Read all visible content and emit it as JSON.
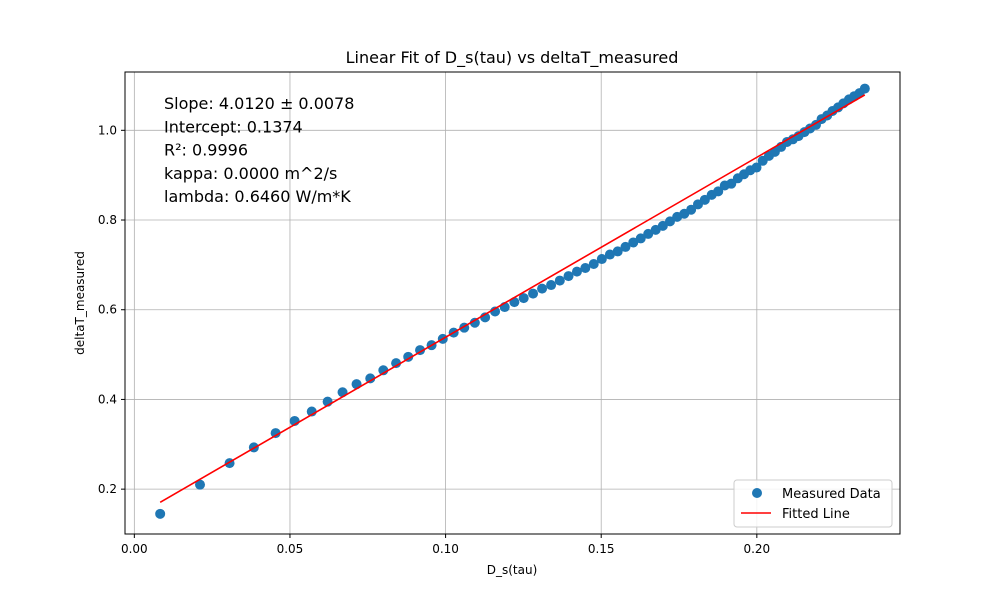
{
  "chart_data": {
    "type": "scatter",
    "title": "Linear Fit of D_s(tau) vs deltaT_measured",
    "xlabel": "D_s(tau)",
    "ylabel": "deltaT_measured",
    "xlim": [
      -0.003,
      0.246
    ],
    "ylim": [
      0.1,
      1.13
    ],
    "xticks": [
      0.0,
      0.05,
      0.1,
      0.15,
      0.2
    ],
    "xtick_labels": [
      "0.00",
      "0.05",
      "0.10",
      "0.15",
      "0.20"
    ],
    "yticks": [
      0.2,
      0.4,
      0.6,
      0.8,
      1.0
    ],
    "ytick_labels": [
      "0.2",
      "0.4",
      "0.6",
      "0.8",
      "1.0"
    ],
    "grid": true,
    "legend_position": "lower-right",
    "annotation_lines": [
      "Slope: 4.0120 ± 0.0078",
      "Intercept: 0.1374",
      "R²: 0.9996",
      "kappa: 0.0000 m^2/s",
      "lambda: 0.6460 W/m*K"
    ],
    "series": [
      {
        "name": "Measured Data",
        "kind": "scatter",
        "color": "#1f77b4",
        "x": [
          0.0083,
          0.0211,
          0.0306,
          0.0384,
          0.0454,
          0.0515,
          0.057,
          0.0621,
          0.0669,
          0.0714,
          0.0758,
          0.08,
          0.0841,
          0.088,
          0.0918,
          0.0955,
          0.0991,
          0.1026,
          0.106,
          0.1094,
          0.1127,
          0.1159,
          0.119,
          0.1221,
          0.1251,
          0.1281,
          0.131,
          0.1339,
          0.1367,
          0.1395,
          0.1422,
          0.1449,
          0.1476,
          0.1502,
          0.1528,
          0.1553,
          0.1578,
          0.1603,
          0.1627,
          0.1651,
          0.1675,
          0.1698,
          0.1721,
          0.1744,
          0.1767,
          0.1789,
          0.1811,
          0.1833,
          0.1855,
          0.1876,
          0.1897,
          0.1918,
          0.1939,
          0.1959,
          0.1979,
          0.1999,
          0.2019,
          0.2039,
          0.2058,
          0.2078,
          0.2097,
          0.2116,
          0.2134,
          0.2153,
          0.2171,
          0.219,
          0.2208,
          0.2226,
          0.2243,
          0.2261,
          0.2278,
          0.2296,
          0.2313,
          0.233,
          0.2347
        ],
        "y": [
          0.145,
          0.21,
          0.258,
          0.293,
          0.325,
          0.352,
          0.373,
          0.395,
          0.416,
          0.434,
          0.447,
          0.465,
          0.481,
          0.495,
          0.51,
          0.521,
          0.535,
          0.549,
          0.56,
          0.571,
          0.583,
          0.596,
          0.606,
          0.617,
          0.626,
          0.636,
          0.647,
          0.655,
          0.665,
          0.675,
          0.685,
          0.693,
          0.702,
          0.713,
          0.723,
          0.73,
          0.74,
          0.75,
          0.759,
          0.769,
          0.778,
          0.787,
          0.797,
          0.807,
          0.814,
          0.823,
          0.835,
          0.845,
          0.856,
          0.864,
          0.877,
          0.881,
          0.893,
          0.902,
          0.911,
          0.917,
          0.932,
          0.943,
          0.952,
          0.963,
          0.974,
          0.98,
          0.987,
          0.996,
          1.004,
          1.012,
          1.025,
          1.033,
          1.043,
          1.051,
          1.06,
          1.069,
          1.076,
          1.083,
          1.093
        ]
      },
      {
        "name": "Fitted Line",
        "kind": "line",
        "color": "#ff0000",
        "x": [
          0.0083,
          0.2347
        ],
        "y": [
          0.1707,
          1.079
        ]
      }
    ]
  }
}
